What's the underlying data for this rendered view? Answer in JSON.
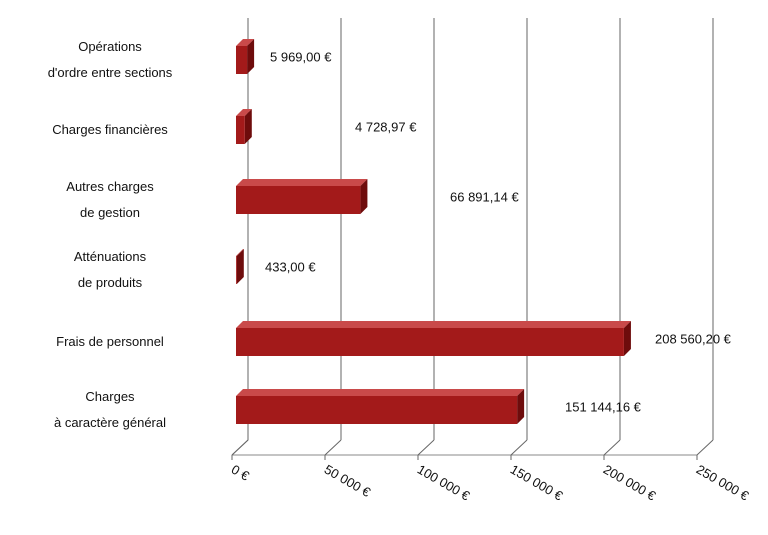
{
  "chart_data": {
    "type": "bar3d_horizontal",
    "categories": [
      "Opérations\nd'ordre entre sections",
      "Charges financières",
      "Autres charges\nde gestion",
      "Atténuations\nde produits",
      "Frais de personnel",
      "Charges\nà caractère général"
    ],
    "values": [
      5969.0,
      4728.97,
      66891.14,
      433.0,
      208560.2,
      151144.16
    ],
    "value_labels": [
      "5 969,00 €",
      "4 728,97 €",
      "66 891,14 €",
      "433,00 €",
      "208 560,20 €",
      "151 144,16 €"
    ],
    "color": "#a31a1a",
    "xlim": [
      0,
      250000
    ],
    "xticks": [
      {
        "value": 0,
        "label": "0 €"
      },
      {
        "value": 50000,
        "label": "50 000 €"
      },
      {
        "value": 100000,
        "label": "100 000 €"
      },
      {
        "value": 150000,
        "label": "150 000 €"
      },
      {
        "value": 200000,
        "label": "200 000 €"
      },
      {
        "value": 250000,
        "label": "250 000 €"
      }
    ],
    "grid": true
  }
}
